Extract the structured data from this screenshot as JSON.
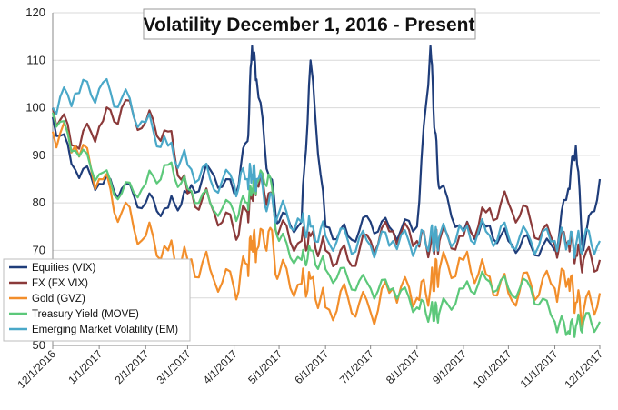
{
  "chart_data": {
    "type": "line",
    "title": "Volatility December 1, 2016 - Present",
    "xlabel": "",
    "ylabel": "",
    "ylim": [
      50,
      120
    ],
    "yticks": [
      50,
      60,
      70,
      80,
      90,
      100,
      110,
      120
    ],
    "x_tick_labels": [
      "12/1/2016",
      "1/1/2017",
      "2/1/2017",
      "3/1/2017",
      "4/1/2017",
      "5/1/2017",
      "6/1/2017",
      "7/1/2017",
      "8/1/2017",
      "9/1/2017",
      "10/1/2017",
      "11/1/2017",
      "12/1/2017"
    ],
    "grid": "horizontal",
    "legend_position": "lower-left",
    "x": [
      "2016-12-01",
      "2016-12-16",
      "2017-01-01",
      "2017-01-16",
      "2017-02-01",
      "2017-02-16",
      "2017-03-01",
      "2017-03-16",
      "2017-04-01",
      "2017-04-10",
      "2017-04-13",
      "2017-04-16",
      "2017-04-24",
      "2017-05-01",
      "2017-05-16",
      "2017-05-22",
      "2017-06-01",
      "2017-06-16",
      "2017-07-01",
      "2017-07-16",
      "2017-08-01",
      "2017-08-10",
      "2017-08-13",
      "2017-08-16",
      "2017-09-01",
      "2017-09-16",
      "2017-10-01",
      "2017-10-16",
      "2017-11-01",
      "2017-11-10",
      "2017-11-15",
      "2017-11-20",
      "2017-12-01"
    ],
    "series": [
      {
        "name": "Equities (VIX)",
        "color": "#1f3d7a",
        "values": [
          98,
          87,
          84,
          83,
          80,
          79,
          82,
          87,
          82,
          93,
          113,
          106,
          86,
          76,
          76,
          110,
          75,
          73,
          76,
          74,
          75,
          113,
          95,
          83,
          74,
          75,
          72,
          71,
          70,
          83,
          92,
          70,
          85
        ]
      },
      {
        "name": "FX (FX VIX)",
        "color": "#8b3a3a",
        "values": [
          100,
          92,
          96,
          100,
          97,
          95,
          82,
          80,
          74,
          78,
          82,
          84,
          82,
          74,
          72,
          73,
          70,
          68,
          72,
          74,
          72,
          71,
          72,
          72,
          73,
          78,
          80,
          76,
          71,
          72,
          69,
          68,
          68
        ]
      },
      {
        "name": "Gold (GVZ)",
        "color": "#f28e2b",
        "values": [
          95,
          92,
          85,
          78,
          73,
          70,
          68,
          66,
          62,
          67,
          72,
          70,
          74,
          65,
          63,
          64,
          58,
          60,
          57,
          62,
          60,
          62,
          65,
          66,
          68,
          65,
          61,
          63,
          62,
          64,
          59,
          57,
          61
        ]
      },
      {
        "name": "Treasury Yield (MOVE)",
        "color": "#5cc87a",
        "values": [
          99,
          91,
          86,
          82,
          84,
          88,
          83,
          80,
          78,
          80,
          83,
          84,
          86,
          72,
          68,
          70,
          66,
          64,
          62,
          62,
          58,
          57,
          57,
          57,
          62,
          64,
          62,
          62,
          55,
          53,
          54,
          55,
          55
        ]
      },
      {
        "name": "Emerging Market Volatility (EM)",
        "color": "#4aa8c8",
        "values": [
          100,
          103,
          104,
          102,
          97,
          92,
          88,
          85,
          84,
          85,
          86,
          85,
          80,
          78,
          76,
          75,
          73,
          72,
          71,
          72,
          71,
          73,
          72,
          73,
          74,
          74,
          73,
          72,
          72,
          72,
          71,
          72,
          72
        ]
      }
    ]
  }
}
